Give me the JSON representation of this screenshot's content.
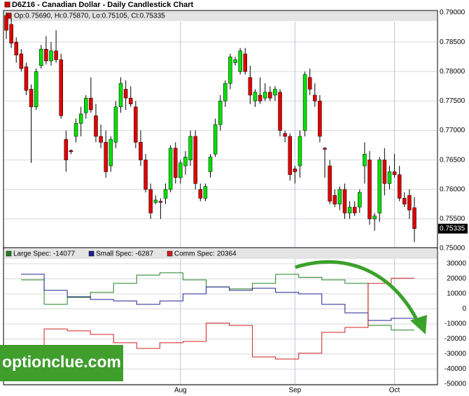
{
  "chart_data": [
    {
      "type": "candlestick",
      "title": "D6Z16 - Canadian Dollar - Daily Candlestick Chart",
      "info": "Op:0.75690, Hi:0.75870, Lo:0.75105, Cl:0.75335",
      "last_price_label": "0.75335",
      "up_color": "#00e000",
      "down_color": "#e00000",
      "categories": [
        null,
        null,
        null,
        null,
        null,
        null,
        null,
        null,
        null,
        null,
        null,
        null,
        null,
        null,
        null,
        null,
        null,
        null,
        null,
        null,
        null,
        null,
        null,
        null,
        null,
        null,
        null,
        null,
        null,
        null,
        null,
        null,
        null,
        null,
        null,
        "Aug",
        null,
        null,
        null,
        null,
        null,
        null,
        null,
        null,
        null,
        null,
        null,
        null,
        null,
        null,
        null,
        null,
        null,
        null,
        null,
        null,
        null,
        null,
        "Sep",
        null,
        null,
        null,
        null,
        null,
        null,
        null,
        null,
        null,
        null,
        null,
        null,
        null,
        null,
        null,
        null,
        null,
        null,
        null,
        "Oct",
        null,
        null,
        null,
        null
      ],
      "open": [
        0.7895,
        0.788,
        0.785,
        0.783,
        0.7808,
        0.777,
        0.774,
        0.781,
        0.7838,
        0.7818,
        0.7835,
        0.782,
        0.7685,
        0.7666,
        0.769,
        0.7712,
        0.773,
        0.7755,
        0.7725,
        0.769,
        0.768,
        0.764,
        0.768,
        0.774,
        0.777,
        0.7755,
        0.774,
        0.768,
        0.765,
        0.76,
        0.7578,
        0.758,
        0.7585,
        0.76,
        0.767,
        0.762,
        0.764,
        0.765,
        0.769,
        0.76,
        0.7585,
        0.763,
        0.766,
        0.771,
        0.775,
        0.778,
        0.7815,
        0.78,
        0.783,
        0.779,
        0.775,
        0.776,
        0.7755,
        0.7765,
        0.776,
        0.7765,
        0.7695,
        0.769,
        0.7635,
        0.764,
        0.77,
        0.779,
        0.776,
        0.775,
        0.767,
        0.764,
        0.759,
        0.7575,
        0.76,
        0.756,
        0.757,
        0.757,
        0.764,
        0.765,
        0.755,
        0.756,
        0.765,
        0.761,
        0.763,
        0.7625,
        0.7585,
        0.759,
        0.7569
      ],
      "high": [
        0.79,
        0.789,
        0.7858,
        0.7838,
        0.7815,
        0.7778,
        0.7805,
        0.7845,
        0.786,
        0.785,
        0.787,
        0.783,
        0.77,
        0.7668,
        0.772,
        0.774,
        0.776,
        0.779,
        0.7745,
        0.771,
        0.77,
        0.769,
        0.775,
        0.779,
        0.7785,
        0.7775,
        0.775,
        0.77,
        0.766,
        0.761,
        0.759,
        0.7585,
        0.761,
        0.7675,
        0.768,
        0.765,
        0.7665,
        0.77,
        0.77,
        0.761,
        0.761,
        0.766,
        0.772,
        0.776,
        0.7785,
        0.783,
        0.7825,
        0.784,
        0.784,
        0.781,
        0.777,
        0.779,
        0.778,
        0.7775,
        0.7775,
        0.777,
        0.77,
        0.7695,
        0.764,
        0.77,
        0.78,
        0.7805,
        0.778,
        0.776,
        0.7672,
        0.765,
        0.76,
        0.7605,
        0.761,
        0.758,
        0.758,
        0.76,
        0.768,
        0.7665,
        0.756,
        0.7655,
        0.767,
        0.764,
        0.766,
        0.764,
        0.7595,
        0.76,
        0.7587
      ],
      "low": [
        0.7855,
        0.784,
        0.7815,
        0.78,
        0.776,
        0.7645,
        0.7735,
        0.7805,
        0.7812,
        0.781,
        0.7815,
        0.772,
        0.763,
        0.766,
        0.768,
        0.769,
        0.772,
        0.773,
        0.768,
        0.767,
        0.762,
        0.763,
        0.767,
        0.773,
        0.7735,
        0.774,
        0.767,
        0.764,
        0.7595,
        0.755,
        0.7575,
        0.755,
        0.7575,
        0.7595,
        0.761,
        0.761,
        0.7625,
        0.764,
        0.76,
        0.758,
        0.758,
        0.762,
        0.7655,
        0.77,
        0.774,
        0.777,
        0.781,
        0.7795,
        0.7795,
        0.7745,
        0.774,
        0.7745,
        0.775,
        0.775,
        0.775,
        0.769,
        0.768,
        0.7615,
        0.761,
        0.762,
        0.769,
        0.776,
        0.774,
        0.768,
        0.762,
        0.7575,
        0.757,
        0.7565,
        0.755,
        0.755,
        0.7555,
        0.756,
        0.761,
        0.754,
        0.753,
        0.7545,
        0.759,
        0.76,
        0.762,
        0.758,
        0.757,
        0.755,
        0.75105
      ],
      "close": [
        0.787,
        0.7848,
        0.7828,
        0.7805,
        0.7768,
        0.774,
        0.78,
        0.7838,
        0.7818,
        0.7835,
        0.782,
        0.7725,
        0.765,
        0.7664,
        0.7712,
        0.7728,
        0.7755,
        0.7735,
        0.769,
        0.768,
        0.763,
        0.7685,
        0.774,
        0.778,
        0.7755,
        0.7745,
        0.768,
        0.765,
        0.76,
        0.756,
        0.7582,
        0.7578,
        0.76,
        0.767,
        0.762,
        0.7645,
        0.7655,
        0.769,
        0.761,
        0.7585,
        0.7605,
        0.7655,
        0.771,
        0.775,
        0.778,
        0.7825,
        0.782,
        0.7835,
        0.78,
        0.776,
        0.7765,
        0.775,
        0.7765,
        0.7755,
        0.777,
        0.77,
        0.769,
        0.7625,
        0.763,
        0.769,
        0.7795,
        0.777,
        0.775,
        0.769,
        0.7668,
        0.758,
        0.7575,
        0.76,
        0.756,
        0.757,
        0.756,
        0.7595,
        0.766,
        0.755,
        0.7555,
        0.765,
        0.761,
        0.763,
        0.7625,
        0.7585,
        0.7575,
        0.7565,
        0.75335
      ],
      "ylim": [
        0.75,
        0.79
      ],
      "yticks": [
        {
          "value": 0.75,
          "label": "0.75000"
        },
        {
          "value": 0.755,
          "label": "0.75500"
        },
        {
          "value": 0.76,
          "label": "0.76000"
        },
        {
          "value": 0.765,
          "label": "0.76500"
        },
        {
          "value": 0.77,
          "label": "0.77000"
        },
        {
          "value": 0.775,
          "label": "0.77500"
        },
        {
          "value": 0.78,
          "label": "0.78000"
        },
        {
          "value": 0.785,
          "label": "0.78500"
        },
        {
          "value": 0.79,
          "label": "0.79000"
        }
      ],
      "grid": true
    },
    {
      "type": "step",
      "series": [
        {
          "name": "Large Spec:",
          "value_label": "-14077",
          "color": "#208020",
          "values": [
            19300,
            3000,
            7700,
            11000,
            17000,
            22500,
            24000,
            19300,
            14600,
            13300,
            17000,
            23000,
            21000,
            19300,
            17000,
            -11000,
            -14077
          ]
        },
        {
          "name": "Small Spec:",
          "value_label": "-6287",
          "color": "#202090",
          "values": [
            23000,
            12300,
            8100,
            6300,
            5300,
            3000,
            5300,
            10000,
            14600,
            12300,
            13700,
            11000,
            10000,
            3000,
            -2600,
            -7700,
            -6287
          ]
        },
        {
          "name": "Comm Spec:",
          "value_label": "20364",
          "color": "#d02020",
          "values": [
            -42000,
            -13300,
            -14600,
            -17000,
            -22500,
            -26300,
            -22500,
            -21600,
            -9500,
            -11000,
            -31900,
            -33300,
            -29500,
            -15600,
            -12300,
            17000,
            20364
          ]
        }
      ],
      "ylim": [
        -50000,
        30000
      ],
      "yticks": [
        {
          "value": 30000,
          "label": "30000"
        },
        {
          "value": 20000,
          "label": "20000"
        },
        {
          "value": 10000,
          "label": "10000"
        },
        0,
        {
          "value": -10000,
          "label": "-10000"
        },
        {
          "value": -20000,
          "label": "-20000"
        },
        {
          "value": -30000,
          "label": "-30000"
        },
        {
          "value": -40000,
          "label": "-40000"
        },
        {
          "value": -50000,
          "label": "-50000"
        }
      ],
      "grid": true,
      "watermark": "optionclue.com"
    }
  ]
}
